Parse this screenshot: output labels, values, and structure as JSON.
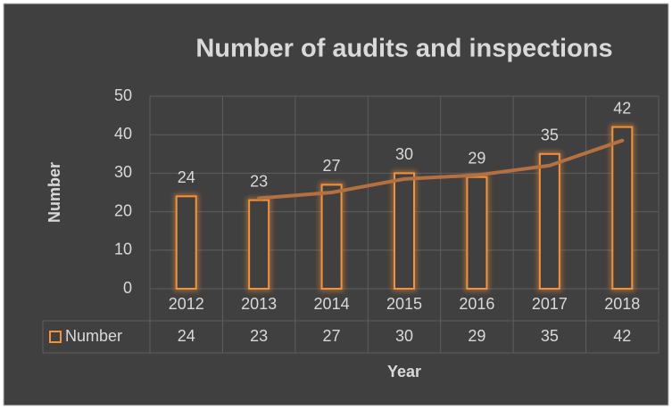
{
  "chart_data": {
    "type": "bar",
    "title": "Number of audits and inspections",
    "x_label": "Year",
    "y_label": "Number",
    "categories": [
      "2012",
      "2013",
      "2014",
      "2015",
      "2016",
      "2017",
      "2018"
    ],
    "series": [
      {
        "name": "Number",
        "color": "#f4923a",
        "values": [
          24,
          23,
          27,
          30,
          29,
          35,
          42
        ]
      }
    ],
    "trend_values": [
      null,
      23.5,
      25,
      28.5,
      29.5,
      32,
      38.5
    ],
    "trend_color": "#b4703f",
    "ylim": [
      0,
      50
    ],
    "yticks": [
      0,
      10,
      20,
      30,
      40,
      50
    ],
    "grid": true,
    "data_table": true
  }
}
